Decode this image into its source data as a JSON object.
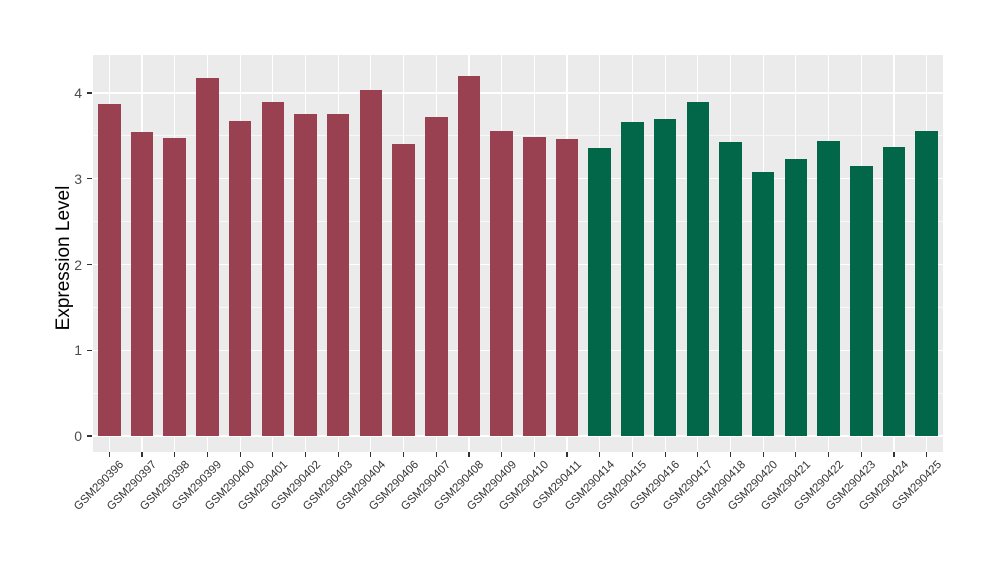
{
  "chart_data": {
    "type": "bar",
    "title": "",
    "xlabel": "",
    "ylabel": "Expression Level",
    "ylim": [
      -0.19,
      4.43
    ],
    "yticks": [
      0,
      1,
      2,
      3,
      4
    ],
    "grid": "on",
    "legend_position": "none",
    "panel_background": "#EBEBEB",
    "gridline_major_color": "#FFFFFF",
    "gridline_minor_color": "rgba(255,255,255,0.65)",
    "tick_mark_color": "#333333",
    "ytick_label_color": "#4D4D4D",
    "xtick_label_color": "#333333",
    "categories": [
      "GSM290396",
      "GSM290397",
      "GSM290398",
      "GSM290399",
      "GSM290400",
      "GSM290401",
      "GSM290402",
      "GSM290403",
      "GSM290404",
      "GSM290406",
      "GSM290407",
      "GSM290408",
      "GSM290409",
      "GSM290410",
      "GSM290411",
      "GSM290414",
      "GSM290415",
      "GSM290416",
      "GSM290417",
      "GSM290418",
      "GSM290420",
      "GSM290421",
      "GSM290422",
      "GSM290423",
      "GSM290424",
      "GSM290425"
    ],
    "values": [
      3.87,
      3.55,
      3.48,
      4.18,
      3.67,
      3.9,
      3.75,
      3.75,
      4.04,
      3.41,
      3.72,
      4.2,
      3.56,
      3.49,
      3.46,
      3.36,
      3.66,
      3.7,
      3.9,
      3.43,
      3.08,
      3.23,
      3.44,
      3.15,
      3.37,
      3.56
    ],
    "bar_groups": [
      "group1",
      "group1",
      "group1",
      "group1",
      "group1",
      "group1",
      "group1",
      "group1",
      "group1",
      "group1",
      "group1",
      "group1",
      "group1",
      "group1",
      "group1",
      "group2",
      "group2",
      "group2",
      "group2",
      "group2",
      "group2",
      "group2",
      "group2",
      "group2",
      "group2",
      "group2"
    ],
    "group_colors": {
      "group1": "#9A4151",
      "group2": "#016748"
    }
  }
}
